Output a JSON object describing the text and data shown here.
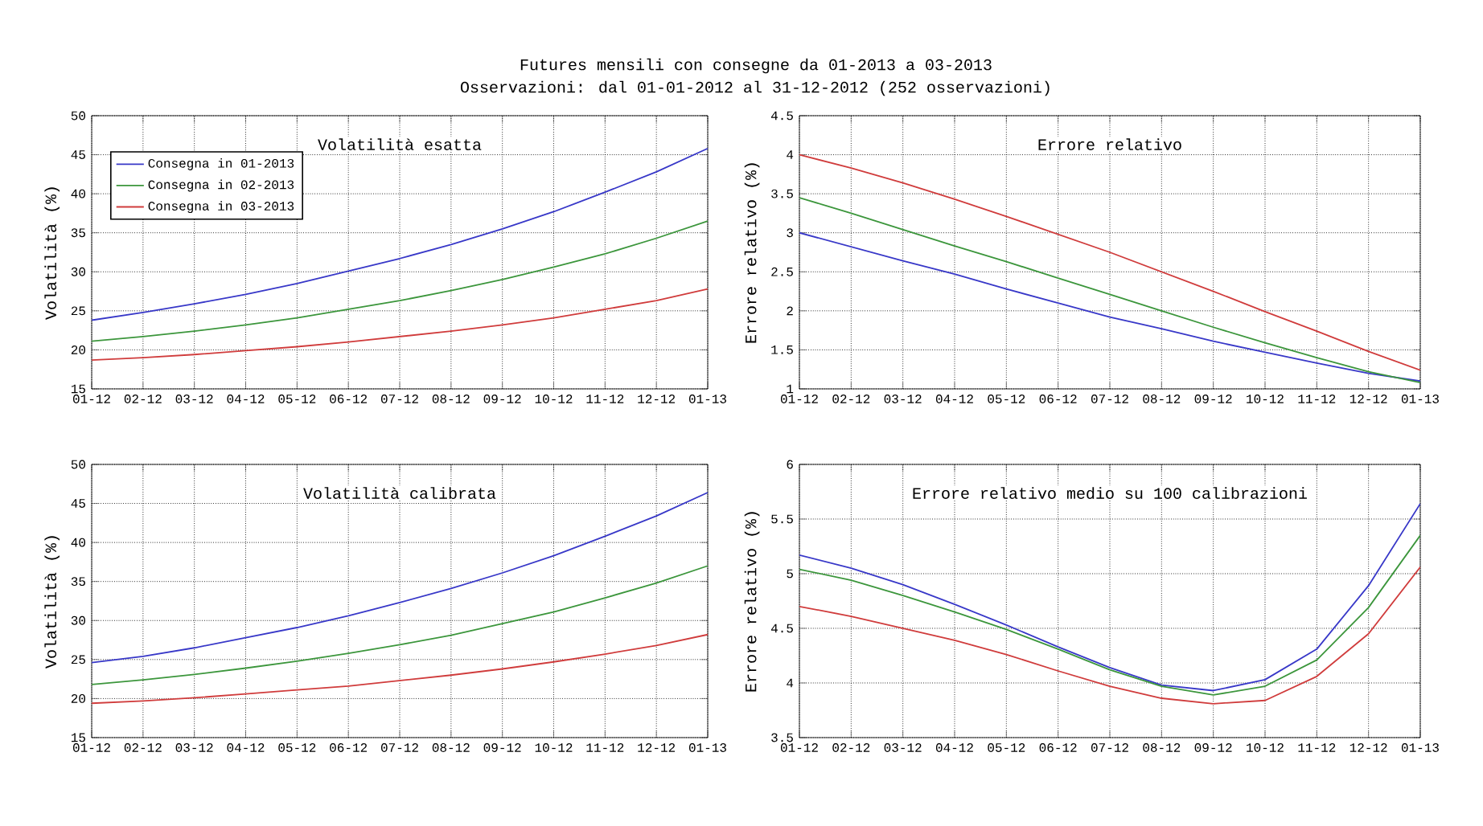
{
  "chart_data": [
    {
      "type": "line",
      "title": "Volatilità esatta",
      "ylabel": "Volatilità (%)",
      "annotations": [
        "Futures mensili con consegne da 01-2013 a 03-2013",
        "Osservazioni: dal 01-01-2012 al 31-12-2012 (252 osservazioni)"
      ],
      "categories": [
        "01-12",
        "02-12",
        "03-12",
        "04-12",
        "05-12",
        "06-12",
        "07-12",
        "08-12",
        "09-12",
        "10-12",
        "11-12",
        "12-12",
        "01-13"
      ],
      "ylim": [
        15,
        50
      ],
      "yticks": [
        15,
        20,
        25,
        30,
        35,
        40,
        45,
        50
      ],
      "grid": true,
      "legend": "top left",
      "series": [
        {
          "name": "Consegna in 01-2013",
          "color": "#3838c8",
          "values": [
            23.8,
            24.8,
            25.9,
            27.1,
            28.5,
            30.1,
            31.7,
            33.5,
            35.5,
            37.7,
            40.2,
            42.8,
            45.8
          ]
        },
        {
          "name": "Consegna in 02-2013",
          "color": "#3c963c",
          "values": [
            21.1,
            21.7,
            22.4,
            23.2,
            24.1,
            25.2,
            26.3,
            27.6,
            29.0,
            30.6,
            32.3,
            34.3,
            36.5
          ]
        },
        {
          "name": "Consegna in 03-2013",
          "color": "#d03c3c",
          "values": [
            18.7,
            19.0,
            19.4,
            19.9,
            20.4,
            21.0,
            21.7,
            22.4,
            23.2,
            24.1,
            25.2,
            26.3,
            27.8
          ]
        }
      ]
    },
    {
      "type": "line",
      "title": "Errore relativo",
      "ylabel": "Errore relativo (%)",
      "categories": [
        "01-12",
        "02-12",
        "03-12",
        "04-12",
        "05-12",
        "06-12",
        "07-12",
        "08-12",
        "09-12",
        "10-12",
        "11-12",
        "12-12",
        "01-13"
      ],
      "ylim": [
        1,
        4.5
      ],
      "yticks": [
        1,
        1.5,
        2,
        2.5,
        3,
        3.5,
        4,
        4.5
      ],
      "grid": true,
      "series": [
        {
          "color": "#3838c8",
          "values": [
            3.0,
            2.82,
            2.64,
            2.47,
            2.28,
            2.1,
            1.92,
            1.77,
            1.61,
            1.47,
            1.33,
            1.2,
            1.1
          ]
        },
        {
          "color": "#3c963c",
          "values": [
            3.45,
            3.25,
            3.04,
            2.83,
            2.63,
            2.42,
            2.21,
            2.0,
            1.79,
            1.59,
            1.4,
            1.22,
            1.08
          ]
        },
        {
          "color": "#d03c3c",
          "values": [
            4.0,
            3.83,
            3.64,
            3.43,
            3.21,
            2.98,
            2.75,
            2.5,
            2.25,
            1.99,
            1.74,
            1.48,
            1.24
          ]
        }
      ]
    },
    {
      "type": "line",
      "title": "Volatilità calibrata",
      "ylabel": "Volatilità (%)",
      "categories": [
        "01-12",
        "02-12",
        "03-12",
        "04-12",
        "05-12",
        "06-12",
        "07-12",
        "08-12",
        "09-12",
        "10-12",
        "11-12",
        "12-12",
        "01-13"
      ],
      "ylim": [
        15,
        50
      ],
      "yticks": [
        15,
        20,
        25,
        30,
        35,
        40,
        45,
        50
      ],
      "grid": true,
      "series": [
        {
          "color": "#3838c8",
          "values": [
            24.6,
            25.4,
            26.5,
            27.8,
            29.1,
            30.6,
            32.3,
            34.1,
            36.1,
            38.3,
            40.8,
            43.4,
            46.4
          ]
        },
        {
          "color": "#3c963c",
          "values": [
            21.8,
            22.4,
            23.1,
            23.9,
            24.8,
            25.8,
            26.9,
            28.1,
            29.6,
            31.1,
            32.9,
            34.8,
            37.0
          ]
        },
        {
          "color": "#d03c3c",
          "values": [
            19.4,
            19.7,
            20.1,
            20.6,
            21.1,
            21.6,
            22.3,
            23.0,
            23.8,
            24.7,
            25.7,
            26.8,
            28.2
          ]
        }
      ]
    },
    {
      "type": "line",
      "title": "Errore relativo medio su 100 calibrazioni",
      "ylabel": "Errore relativo (%)",
      "categories": [
        "01-12",
        "02-12",
        "03-12",
        "04-12",
        "05-12",
        "06-12",
        "07-12",
        "08-12",
        "09-12",
        "10-12",
        "11-12",
        "12-12",
        "01-13"
      ],
      "ylim": [
        3.5,
        6
      ],
      "yticks": [
        3.5,
        4,
        4.5,
        5,
        5.5,
        6
      ],
      "grid": true,
      "series": [
        {
          "color": "#3838c8",
          "values": [
            5.17,
            5.05,
            4.9,
            4.72,
            4.53,
            4.33,
            4.14,
            3.98,
            3.93,
            4.03,
            4.31,
            4.89,
            5.64
          ]
        },
        {
          "color": "#3c963c",
          "values": [
            5.04,
            4.94,
            4.8,
            4.65,
            4.49,
            4.31,
            4.12,
            3.97,
            3.89,
            3.97,
            4.21,
            4.69,
            5.35
          ]
        },
        {
          "color": "#d03c3c",
          "values": [
            4.7,
            4.61,
            4.5,
            4.39,
            4.26,
            4.11,
            3.97,
            3.86,
            3.81,
            3.84,
            4.06,
            4.45,
            5.06
          ]
        }
      ]
    }
  ]
}
